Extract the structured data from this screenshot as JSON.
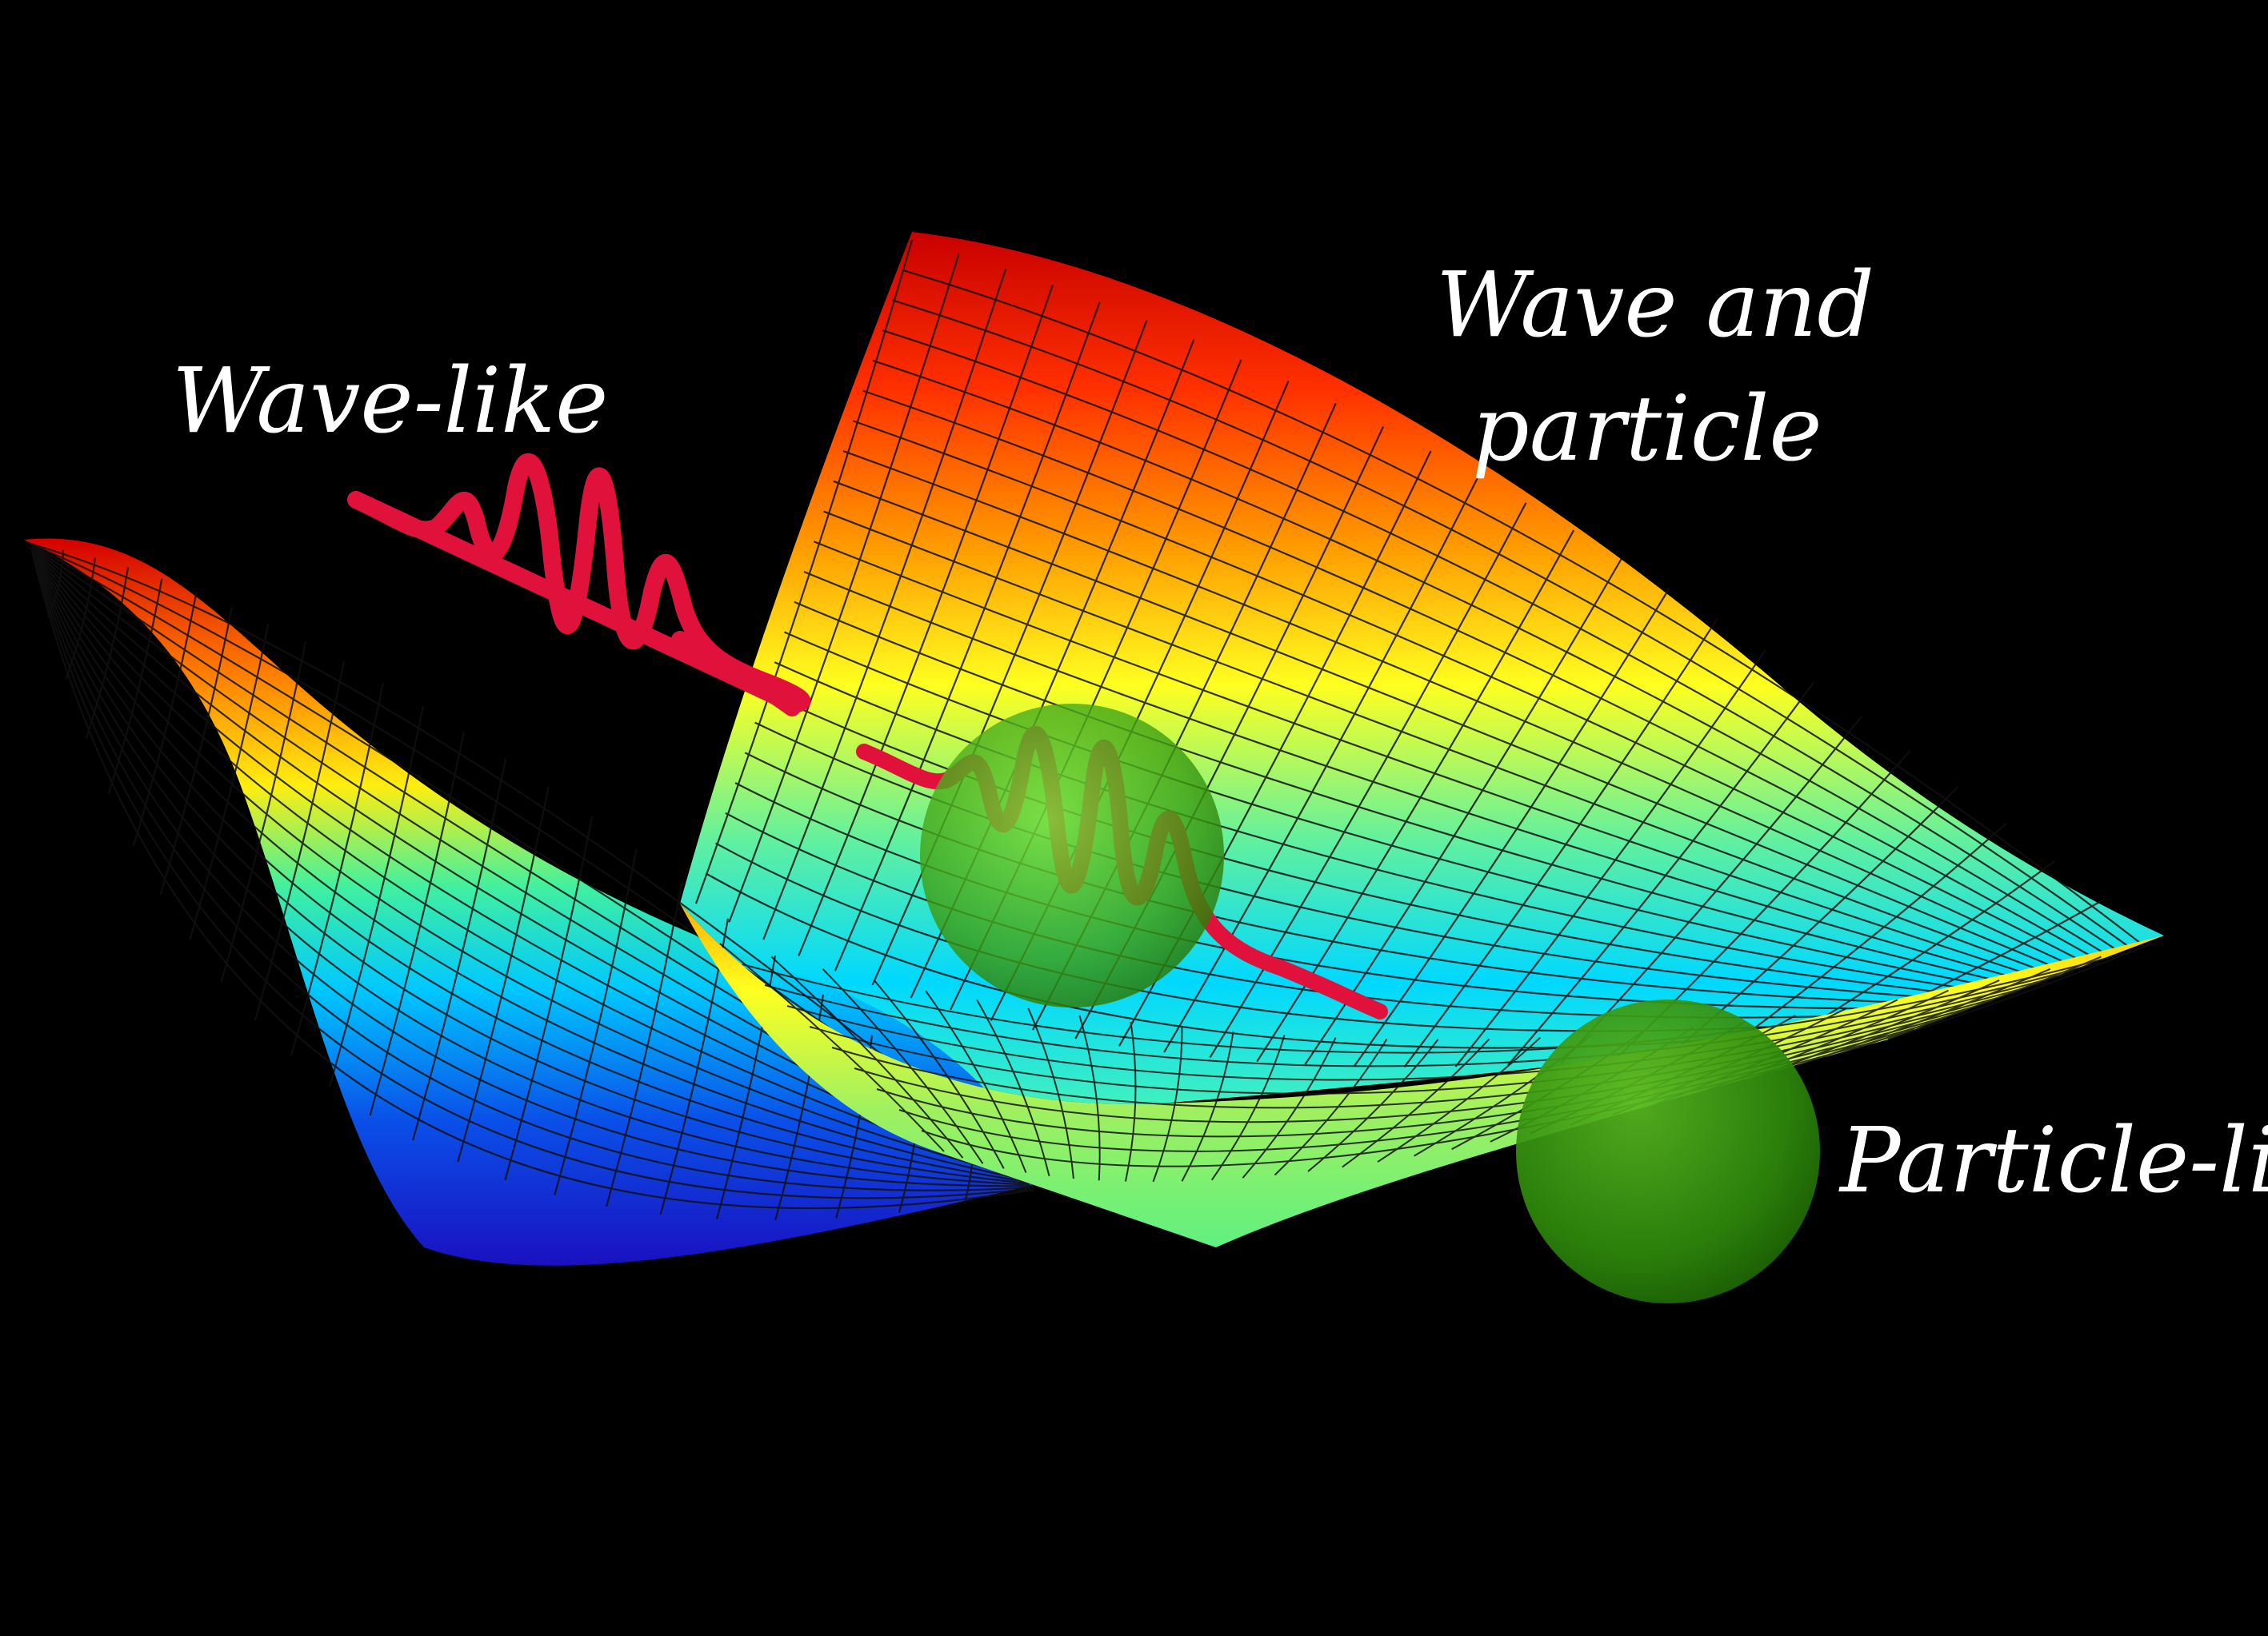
{
  "labels": {
    "wave_like": "Wave-like",
    "wave_and_particle_line1": "Wave and",
    "wave_and_particle_line2": "particle",
    "particle_like": "Particle-like"
  },
  "colors": {
    "background": "#000000",
    "text": "#ffffff",
    "wave": "#e0123c",
    "particle": "#3aa312",
    "surface_colormap": [
      "#1020d8",
      "#00c8ff",
      "#30f0c0",
      "#ffff20",
      "#ff8800",
      "#dd0000"
    ]
  },
  "icons": [
    "wave-packet-icon",
    "particle-sphere-icon"
  ]
}
